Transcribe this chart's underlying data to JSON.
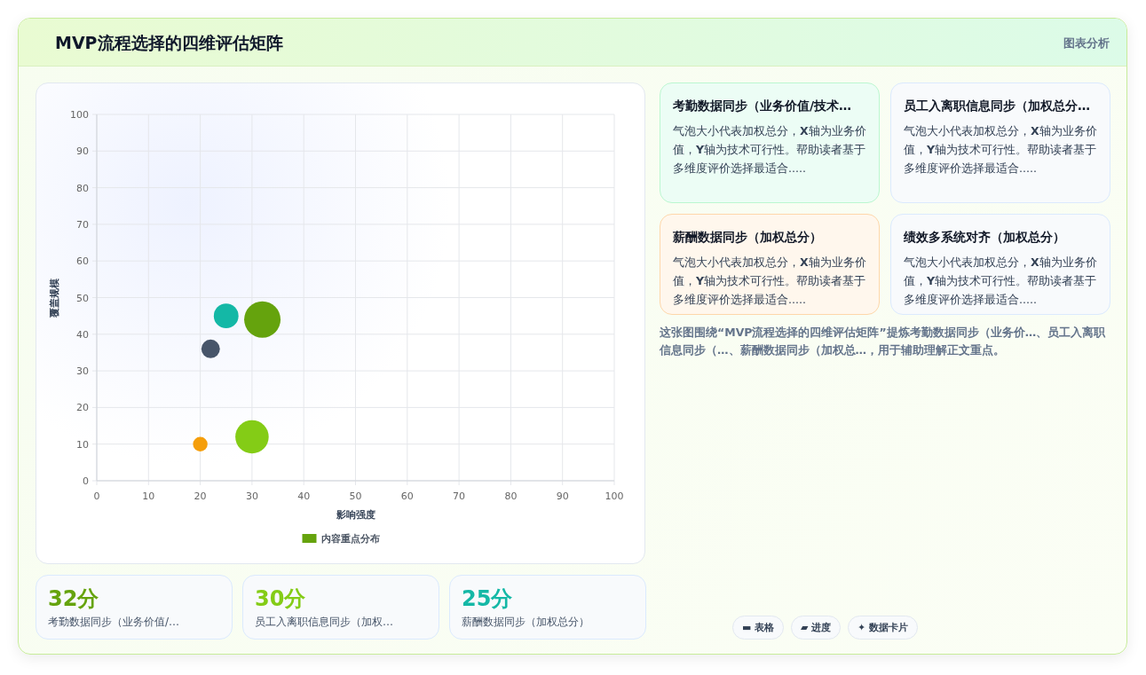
{
  "chart_data": [
    {
      "type": "bubble",
      "title": "MVP流程选择的四维评估矩阵",
      "xlabel": "影响强度",
      "ylabel": "覆盖规模",
      "x": [
        32,
        30,
        25,
        22,
        20
      ],
      "series": [
        {
          "name": "内容重点分布",
          "color": "#65a30d",
          "colors": [
            "#65a30d",
            "#84cc16",
            "#14b8a6",
            "#475569",
            "#f59e0b"
          ],
          "values": [
            44,
            12,
            45,
            36,
            10
          ],
          "sizes": [
            1,
            0.84,
            0.46,
            0.26,
            0.16
          ]
        }
      ],
      "xlim": [
        0,
        100
      ],
      "ylim": [
        0,
        100
      ],
      "xticks": [
        0,
        10,
        20,
        30,
        40,
        50,
        60,
        70,
        80,
        90,
        100
      ],
      "yticks": [
        0,
        10,
        20,
        30,
        40,
        50,
        60,
        70,
        80,
        90,
        100
      ],
      "grid": true,
      "legend": "bottom",
      "annotations": [
        "图表分析"
      ]
    },
    {
      "type": "other",
      "annotations": [
        "考勤数据同步（业务价值/技术…",
        "气泡大小代表加权总分，**X**轴为业务价值，**Y**轴为技术可行性。帮助读者基于多维度评价选择最适合.....",
        "员工入离职信息同步（加权总分…",
        "气泡大小代表加权总分，**X**轴为业务价值，**Y**轴为技术可行性。帮助读者基于多维度评价选择最适合.....",
        "薪酬数据同步（加权总分）",
        "气泡大小代表加权总分，**X**轴为业务价值，**Y**轴为技术可行性。帮助读者基于多维度评价选择最适合.....",
        "绩效多系统对齐（加权总分）",
        "气泡大小代表加权总分，**X**轴为业务价值，**Y**轴为技术可行性。帮助读者基于多维度评价选择最适合.....",
        "这张图围绕“MVP流程选择的四维评估矩阵”提炼考勤数据同步（业务价…、员工入离职信息同步（…、薪酬数据同步（加权总…，用于辅助理解正文重点。",
        "▬ 表格",
        "▰ 进度",
        "✦ 数据卡片"
      ]
    },
    {
      "type": "other",
      "annotations": [
        "32分",
        "考勤数据同步（业务价值/…",
        "30分",
        "员工入离职信息同步（加权…",
        "25分",
        "薪酬数据同步（加权总分）"
      ]
    }
  ]
}
